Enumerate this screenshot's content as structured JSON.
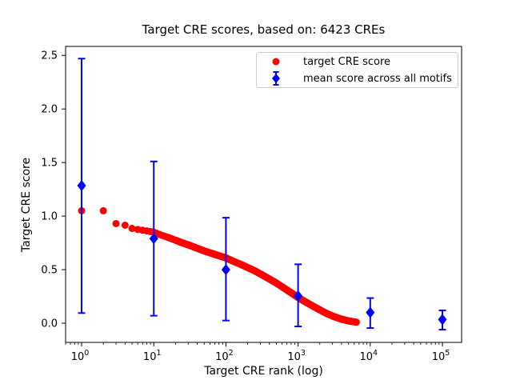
{
  "figure": {
    "title": "Target CRE scores, based on: 6423 CREs",
    "background": "#ffffff"
  },
  "axes": {
    "xlabel": "Target CRE rank (log)",
    "ylabel": "Target CRE score",
    "x_scale": "log10",
    "x_tick_base": "10",
    "x_tick_exponents": [
      0,
      1,
      2,
      3,
      4,
      5
    ],
    "y_tick_labels": [
      "0.0",
      "0.5",
      "1.0",
      "1.5",
      "2.0",
      "2.5"
    ],
    "y_tick_values": [
      0,
      0.5,
      1.0,
      1.5,
      2.0,
      2.5
    ],
    "xlim_log10": [
      -0.222,
      5.266
    ],
    "ylim": [
      -0.179,
      2.584
    ],
    "spine_color": "#000000",
    "tick_color": "#000000"
  },
  "legend": {
    "position": "upper right",
    "border_color": "#cccccc",
    "items": [
      {
        "label": "target CRE score",
        "marker": "circle",
        "color": "#ff0000"
      },
      {
        "label": "mean score across all motifs",
        "marker": "diamond-errorbar",
        "color": "#0000ff"
      }
    ]
  },
  "chart_data": {
    "type": "scatter",
    "title": "Target CRE scores, based on: 6423 CREs",
    "xlabel": "Target CRE rank (log)",
    "ylabel": "Target CRE score",
    "x_scale": "log10",
    "xlim": [
      0.6,
      185000
    ],
    "ylim": [
      -0.179,
      2.584
    ],
    "grid": false,
    "legend_position": "upper right",
    "series": [
      {
        "name": "target CRE score",
        "type": "scatter",
        "marker": "circle",
        "color": "#ff0000",
        "n_points_depicted": 6423,
        "note": "6423 ranked CREs form a dense descending band; control points (rank, score) read from plot",
        "control_points_rank_score": [
          [
            1,
            1.05
          ],
          [
            2,
            1.05
          ],
          [
            3,
            0.93
          ],
          [
            4,
            0.915
          ],
          [
            5,
            0.885
          ],
          [
            6,
            0.875
          ],
          [
            7,
            0.868
          ],
          [
            8,
            0.862
          ],
          [
            9,
            0.856
          ],
          [
            10,
            0.85
          ],
          [
            13,
            0.82
          ],
          [
            16,
            0.8
          ],
          [
            20,
            0.775
          ],
          [
            25,
            0.75
          ],
          [
            32,
            0.725
          ],
          [
            40,
            0.7
          ],
          [
            50,
            0.675
          ],
          [
            65,
            0.65
          ],
          [
            80,
            0.63
          ],
          [
            100,
            0.61
          ],
          [
            130,
            0.575
          ],
          [
            160,
            0.55
          ],
          [
            200,
            0.52
          ],
          [
            250,
            0.49
          ],
          [
            320,
            0.45
          ],
          [
            400,
            0.413
          ],
          [
            500,
            0.375
          ],
          [
            650,
            0.325
          ],
          [
            800,
            0.285
          ],
          [
            1000,
            0.24
          ],
          [
            1300,
            0.195
          ],
          [
            1600,
            0.16
          ],
          [
            2000,
            0.125
          ],
          [
            2500,
            0.09
          ],
          [
            3200,
            0.06
          ],
          [
            4000,
            0.038
          ],
          [
            5000,
            0.022
          ],
          [
            6423,
            0.01
          ]
        ]
      },
      {
        "name": "mean score across all motifs",
        "type": "scatter_with_errorbars",
        "marker": "diamond",
        "color": "#0000ff",
        "points": [
          {
            "rank": 1,
            "mean": 1.285,
            "err_low": 0.095,
            "err_high": 2.47
          },
          {
            "rank": 10,
            "mean": 0.79,
            "err_low": 0.07,
            "err_high": 1.51
          },
          {
            "rank": 100,
            "mean": 0.5,
            "err_low": 0.025,
            "err_high": 0.985
          },
          {
            "rank": 1000,
            "mean": 0.255,
            "err_low": -0.03,
            "err_high": 0.55
          },
          {
            "rank": 10000,
            "mean": 0.1,
            "err_low": -0.045,
            "err_high": 0.235
          },
          {
            "rank": 100000,
            "mean": 0.035,
            "err_low": -0.06,
            "err_high": 0.12
          }
        ]
      }
    ]
  }
}
